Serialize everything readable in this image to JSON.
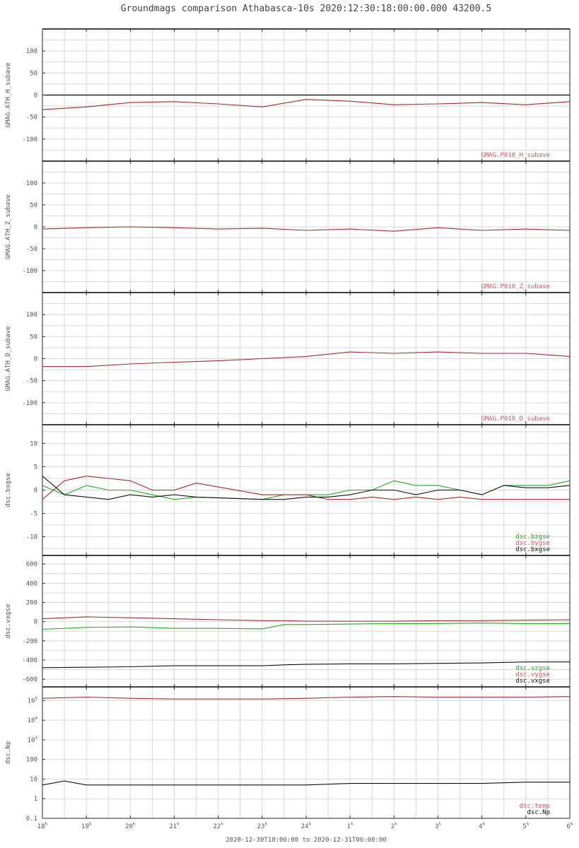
{
  "chart_data": {
    "type": "line",
    "title": "Groundmags comparison Athabasca-10s 2020:12:30:18:00:00.000 43200.5",
    "xlabel": "2020-12-30T18:00:00 to 2020-12-31T06:00:00",
    "x_ticks": [
      {
        "h": "18",
        "s": "h"
      },
      {
        "h": "19",
        "s": "h"
      },
      {
        "h": "20",
        "s": "h"
      },
      {
        "h": "21",
        "s": "h"
      },
      {
        "h": "22",
        "s": "h"
      },
      {
        "h": "23",
        "s": "h"
      },
      {
        "h": "24",
        "s": "h"
      },
      {
        "h": "1",
        "s": "h"
      },
      {
        "h": "2",
        "s": "h"
      },
      {
        "h": "3",
        "s": "h"
      },
      {
        "h": "4",
        "s": "h"
      },
      {
        "h": "5",
        "s": "h"
      },
      {
        "h": "6",
        "s": "h"
      }
    ],
    "x_range_hours": [
      0,
      12
    ],
    "panels": [
      {
        "ylabel": "GMAG.ATH_H_subave",
        "ylim": [
          -150,
          150
        ],
        "yticks": [
          100,
          50,
          0,
          -50,
          -100
        ],
        "ytick_labels": [
          "100",
          "50",
          "0",
          "-50",
          "-100"
        ],
        "zero_line": true,
        "legend": [
          "GMAG.P010_H_subave"
        ],
        "series": [
          {
            "name": "GMAG.P010_H_subave",
            "color": "#a52a2a",
            "x": [
              0,
              1,
              2,
              3,
              4,
              5,
              6,
              7,
              8,
              9,
              10,
              11,
              12
            ],
            "y": [
              -33,
              -27,
              -17,
              -15,
              -20,
              -27,
              -10,
              -14,
              -22,
              -20,
              -17,
              -22,
              -15
            ]
          }
        ]
      },
      {
        "ylabel": "GMAG.ATH_Z_subave",
        "ylim": [
          -150,
          150
        ],
        "yticks": [
          100,
          50,
          0,
          -50,
          -100
        ],
        "ytick_labels": [
          "100",
          "50",
          "0",
          "-50",
          "-100"
        ],
        "zero_line": false,
        "legend": [
          "GMAG.P010_Z_subave"
        ],
        "series": [
          {
            "name": "GMAG.P010_Z_subave",
            "color": "#a52a2a",
            "x": [
              0,
              1,
              2,
              3,
              4,
              5,
              6,
              7,
              8,
              9,
              10,
              11,
              12
            ],
            "y": [
              -5,
              -2,
              0,
              -2,
              -5,
              -3,
              -8,
              -5,
              -10,
              -2,
              -8,
              -5,
              -8
            ]
          }
        ]
      },
      {
        "ylabel": "GMAG.ATH_D_subave",
        "ylim": [
          -150,
          150
        ],
        "yticks": [
          100,
          50,
          0,
          -50,
          -100
        ],
        "ytick_labels": [
          "100",
          "50",
          "0",
          "-50",
          "-100"
        ],
        "zero_line": false,
        "legend": [
          "GMAG.P010_D_subave"
        ],
        "series": [
          {
            "name": "GMAG.P010_D_subave",
            "color": "#a52a2a",
            "x": [
              0,
              1,
              2,
              3,
              4,
              5,
              6,
              7,
              8,
              9,
              10,
              11,
              12
            ],
            "y": [
              -18,
              -18,
              -12,
              -8,
              -5,
              0,
              5,
              15,
              12,
              15,
              12,
              12,
              5
            ]
          }
        ]
      },
      {
        "ylabel": "dsc.bxgse",
        "ylim": [
          -14,
          14
        ],
        "yticks": [
          10,
          5,
          0,
          -5,
          -10
        ],
        "ytick_labels": [
          "10",
          "5",
          "0",
          "-5",
          "-10"
        ],
        "zero_line": false,
        "legend": [
          "dsc.bzgse",
          "dsc.bygse",
          "dsc.bxgse"
        ],
        "series": [
          {
            "name": "dsc.bzgse",
            "color": "#22aa22",
            "x": [
              0,
              0.5,
              1,
              1.5,
              2,
              2.5,
              3,
              3.5,
              5,
              5.5,
              6,
              6.5,
              7,
              7.5,
              8,
              8.5,
              9,
              9.5,
              10,
              10.5,
              11,
              11.5,
              12
            ],
            "y": [
              1,
              -1,
              1,
              0,
              0,
              -1,
              -2,
              -1.5,
              -2,
              -1,
              -1,
              -1,
              0,
              0,
              2,
              1,
              1,
              0,
              -1,
              1,
              1,
              1,
              2
            ]
          },
          {
            "name": "dsc.bygse",
            "color": "#a52a2a",
            "x": [
              0,
              0.5,
              1,
              1.5,
              2,
              2.5,
              3,
              3.5,
              5,
              5.5,
              6,
              6.5,
              7,
              7.5,
              8,
              8.5,
              9,
              9.5,
              10,
              10.5,
              11,
              11.5,
              12
            ],
            "y": [
              -2,
              2,
              3,
              2.5,
              2,
              0,
              0,
              1.5,
              -1,
              -1,
              -1,
              -2,
              -2,
              -1.5,
              -2,
              -1.5,
              -2,
              -1.5,
              -2,
              -2,
              -2,
              -2,
              -2
            ]
          },
          {
            "name": "dsc.bxgse",
            "color": "#111111",
            "x": [
              0,
              0.5,
              1,
              1.5,
              2,
              2.5,
              3,
              3.5,
              5,
              5.5,
              6,
              6.5,
              7,
              7.5,
              8,
              8.5,
              9,
              9.5,
              10,
              10.5,
              11,
              11.5,
              12
            ],
            "y": [
              3,
              -1,
              -1.5,
              -2,
              -1,
              -1.5,
              -1,
              -1.5,
              -2,
              -2,
              -1.5,
              -1.5,
              -1,
              0,
              0,
              -1,
              0,
              0,
              -1,
              1,
              0.5,
              0.5,
              1
            ]
          }
        ]
      },
      {
        "ylabel": "dsc.vxgse",
        "ylim": [
          -680,
          690
        ],
        "yticks": [
          600,
          400,
          200,
          0,
          -200,
          -400,
          -600
        ],
        "ytick_labels": [
          "600",
          "400",
          "200",
          "0",
          "-200",
          "-400",
          "-600"
        ],
        "zero_line": false,
        "legend": [
          "dsc.vzgse",
          "dsc.vygse",
          "dsc.vxgse"
        ],
        "series": [
          {
            "name": "dsc.vzgse",
            "color": "#22aa22",
            "x": [
              0,
              1,
              2,
              3,
              4,
              5,
              5.5,
              6,
              7,
              8,
              9,
              10,
              11,
              12
            ],
            "y": [
              -80,
              -60,
              -55,
              -70,
              -70,
              -75,
              -30,
              -30,
              -25,
              -20,
              -20,
              -15,
              -20,
              -20
            ]
          },
          {
            "name": "dsc.vygse",
            "color": "#a52a2a",
            "x": [
              0,
              1,
              2,
              3,
              4,
              5,
              5.5,
              6,
              7,
              8,
              9,
              10,
              11,
              12
            ],
            "y": [
              30,
              50,
              40,
              30,
              20,
              10,
              10,
              5,
              5,
              5,
              10,
              10,
              15,
              20
            ]
          },
          {
            "name": "dsc.vxgse",
            "color": "#111111",
            "x": [
              0,
              1,
              2,
              3,
              4,
              5,
              5.5,
              6,
              7,
              8,
              9,
              10,
              11,
              12
            ],
            "y": [
              -480,
              -475,
              -470,
              -460,
              -460,
              -460,
              -450,
              -445,
              -440,
              -440,
              -435,
              -430,
              -420,
              -420
            ]
          }
        ]
      },
      {
        "ylabel": "dsc.Np",
        "scale": "log",
        "ylim": [
          0.1,
          500000
        ],
        "yticks": [
          100000,
          10000,
          1000,
          100,
          10,
          1,
          0.1
        ],
        "ytick_labels": [
          {
            "b": "10",
            "e": "5"
          },
          {
            "b": "10",
            "e": "4"
          },
          {
            "b": "10",
            "e": "3"
          },
          {
            "b": "100",
            "e": ""
          },
          {
            "b": "10",
            "e": ""
          },
          {
            "b": "1",
            "e": ""
          },
          {
            "b": "0.1",
            "e": ""
          }
        ],
        "zero_line": false,
        "legend": [
          "dsc.temp",
          "dsc.Np"
        ],
        "series": [
          {
            "name": "dsc.temp",
            "color": "#a52a2a",
            "x": [
              0,
              1,
              2,
              3,
              4,
              5,
              6,
              7,
              8,
              9,
              10,
              11,
              12
            ],
            "y": [
              130000,
              150000,
              130000,
              120000,
              120000,
              120000,
              130000,
              150000,
              160000,
              150000,
              150000,
              150000,
              160000
            ]
          },
          {
            "name": "dsc.Np",
            "color": "#111111",
            "x": [
              0,
              0.5,
              1,
              2,
              3,
              4,
              5,
              6,
              7,
              8,
              9,
              10,
              11,
              12
            ],
            "y": [
              5,
              8,
              5,
              5,
              5,
              5,
              5,
              5,
              6,
              6,
              6,
              6,
              7,
              7
            ]
          }
        ]
      }
    ]
  }
}
